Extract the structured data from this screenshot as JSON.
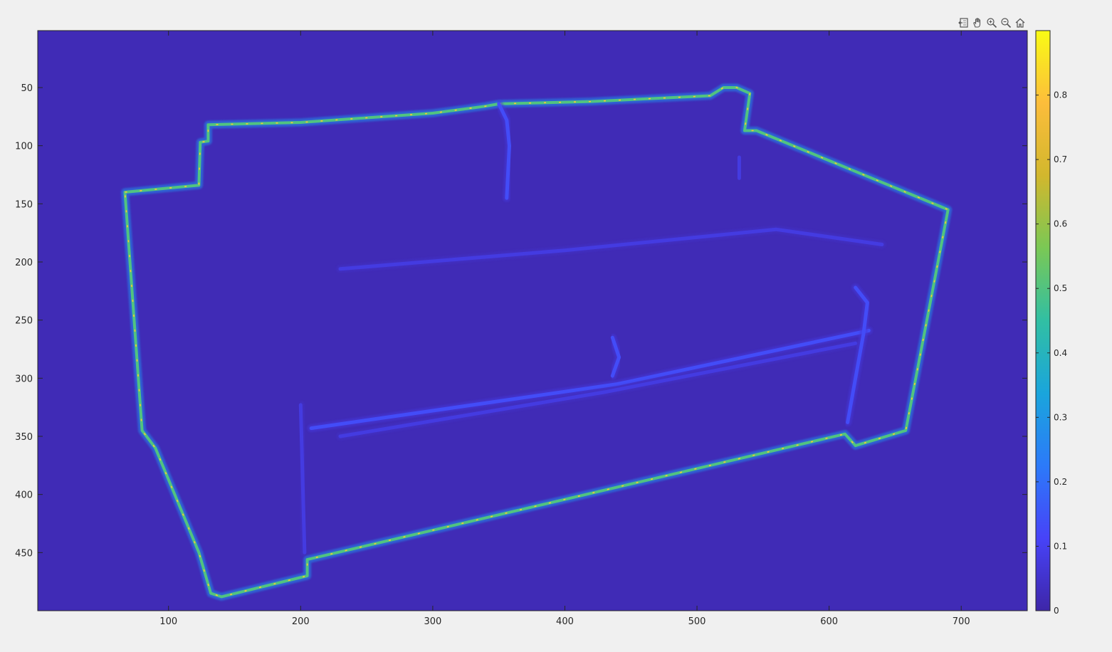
{
  "toolbar": {
    "icons": [
      "export-icon",
      "pan-icon",
      "zoom-in-icon",
      "zoom-out-icon",
      "home-icon"
    ]
  },
  "colors": {
    "figure_bg": "#f0f0f0",
    "axes_bg": "#3e26a8",
    "parula_stops": [
      "#3e26a8",
      "#4743f8",
      "#2c7af9",
      "#1aa5dc",
      "#31bfa3",
      "#7ac855",
      "#d2b72d",
      "#fcbd3b",
      "#f9fb15"
    ]
  },
  "chart_data": {
    "type": "heatmap",
    "title": "",
    "xlabel": "",
    "ylabel": "",
    "xlim": [
      1,
      750
    ],
    "ylim": [
      1,
      500
    ],
    "y_reversed": true,
    "x_ticks": [
      100,
      200,
      300,
      400,
      500,
      600,
      700
    ],
    "x_tick_labels": [
      "100",
      "200",
      "300",
      "400",
      "500",
      "600",
      "700"
    ],
    "y_ticks": [
      50,
      100,
      150,
      200,
      250,
      300,
      350,
      400,
      450
    ],
    "y_tick_labels": [
      "50",
      "100",
      "150",
      "200",
      "250",
      "300",
      "350",
      "400",
      "450"
    ],
    "colorbar": {
      "location": "right",
      "clim": [
        0,
        0.9
      ],
      "ticks": [
        0,
        0.1,
        0.2,
        0.3,
        0.4,
        0.5,
        0.6,
        0.7,
        0.8
      ],
      "tick_labels": [
        "0",
        "0.1",
        "0.2",
        "0.3",
        "0.4",
        "0.5",
        "0.6",
        "0.7",
        "0.8"
      ]
    },
    "background_value": 0.02,
    "strokes": [
      {
        "name": "outer-silhouette",
        "value": 0.5,
        "closed": true,
        "points": [
          [
            67,
            140
          ],
          [
            123,
            134
          ],
          [
            124,
            97
          ],
          [
            130,
            96
          ],
          [
            130,
            82
          ],
          [
            200,
            80
          ],
          [
            300,
            72
          ],
          [
            340,
            66
          ],
          [
            350,
            64
          ],
          [
            420,
            62
          ],
          [
            510,
            57
          ],
          [
            520,
            50
          ],
          [
            530,
            50
          ],
          [
            540,
            55
          ],
          [
            536,
            87
          ],
          [
            545,
            87
          ],
          [
            690,
            155
          ],
          [
            658,
            345
          ],
          [
            620,
            358
          ],
          [
            612,
            348
          ],
          [
            205,
            456
          ],
          [
            205,
            470
          ],
          [
            140,
            488
          ],
          [
            132,
            485
          ],
          [
            123,
            450
          ],
          [
            90,
            360
          ],
          [
            80,
            345
          ]
        ]
      },
      {
        "name": "back-cushion-divider",
        "value": 0.13,
        "closed": false,
        "points": [
          [
            350,
            64
          ],
          [
            356,
            78
          ],
          [
            358,
            100
          ],
          [
            356,
            145
          ]
        ]
      },
      {
        "name": "seat-front-edge",
        "value": 0.13,
        "closed": false,
        "points": [
          [
            208,
            343
          ],
          [
            440,
            305
          ],
          [
            630,
            259
          ]
        ]
      },
      {
        "name": "seat-lower-edge",
        "value": 0.08,
        "closed": false,
        "points": [
          [
            230,
            350
          ],
          [
            430,
            312
          ],
          [
            620,
            270
          ]
        ]
      },
      {
        "name": "seat-back-edge",
        "value": 0.08,
        "closed": false,
        "points": [
          [
            230,
            206
          ],
          [
            400,
            190
          ],
          [
            560,
            172
          ],
          [
            640,
            185
          ]
        ]
      },
      {
        "name": "seat-cushion-divider",
        "value": 0.13,
        "closed": false,
        "points": [
          [
            436,
            265
          ],
          [
            441,
            282
          ],
          [
            436,
            298
          ]
        ]
      },
      {
        "name": "right-arm-inner",
        "value": 0.13,
        "closed": false,
        "points": [
          [
            620,
            222
          ],
          [
            629,
            235
          ],
          [
            626,
            262
          ],
          [
            620,
            300
          ],
          [
            614,
            338
          ]
        ]
      },
      {
        "name": "left-front-leg",
        "value": 0.08,
        "closed": false,
        "points": [
          [
            200,
            323
          ],
          [
            203,
            450
          ]
        ]
      },
      {
        "name": "back-right-fold",
        "value": 0.08,
        "closed": false,
        "points": [
          [
            532,
            110
          ],
          [
            532,
            128
          ]
        ]
      }
    ]
  }
}
